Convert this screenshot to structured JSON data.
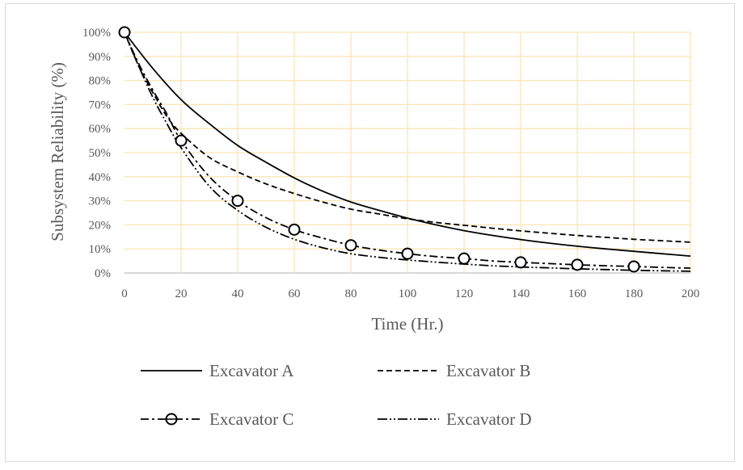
{
  "chart_data": {
    "type": "line",
    "title": "",
    "xlabel": "Time (Hr.)",
    "ylabel": "Subsystem Reliability (%)",
    "xlim": [
      0,
      200
    ],
    "ylim": [
      0,
      100
    ],
    "x_ticks": [
      0,
      20,
      40,
      60,
      80,
      100,
      120,
      140,
      160,
      180,
      200
    ],
    "y_ticks": [
      "0%",
      "10%",
      "20%",
      "30%",
      "40%",
      "50%",
      "60%",
      "70%",
      "80%",
      "90%",
      "100%"
    ],
    "grid": true,
    "legend_position": "bottom",
    "colors": {
      "line": "#000000",
      "grid": "#fbe5b6",
      "text": "#595959",
      "frame": "#d9d9d9"
    },
    "series": [
      {
        "name": "Excavator A",
        "style": "solid",
        "x": [
          0,
          10,
          20,
          30,
          40,
          50,
          60,
          70,
          80,
          90,
          100,
          110,
          120,
          130,
          140,
          150,
          160,
          170,
          180,
          190,
          200
        ],
        "values": [
          100,
          85,
          72,
          62,
          53,
          46,
          39.5,
          34,
          29.5,
          26,
          22.8,
          20,
          17.6,
          15.6,
          13.9,
          12.4,
          11.1,
          10,
          9,
          8,
          7
        ]
      },
      {
        "name": "Excavator B",
        "style": "dashed",
        "x": [
          0,
          5,
          10,
          15,
          20,
          30,
          40,
          50,
          60,
          70,
          80,
          90,
          100,
          110,
          120,
          130,
          140,
          150,
          160,
          170,
          180,
          190,
          200
        ],
        "values": [
          100,
          86,
          75,
          65,
          58,
          48,
          42,
          37,
          33,
          29.5,
          26.5,
          24.5,
          22.5,
          21,
          19.8,
          18.6,
          17.5,
          16.5,
          15.6,
          14.8,
          14,
          13.4,
          12.8
        ]
      },
      {
        "name": "Excavator C",
        "style": "dash-dot-marker",
        "x": [
          0,
          5,
          10,
          15,
          20,
          30,
          40,
          50,
          60,
          70,
          80,
          90,
          100,
          110,
          120,
          130,
          140,
          150,
          160,
          170,
          180,
          190,
          200
        ],
        "values": [
          100,
          87,
          76,
          66,
          55,
          40,
          30,
          23,
          18,
          14.5,
          11.5,
          9.5,
          8,
          6.8,
          6,
          5,
          4.4,
          3.9,
          3.4,
          3,
          2.7,
          2.3,
          2
        ],
        "marker_x": [
          0,
          20,
          40,
          60,
          80,
          100,
          120,
          140,
          160,
          180
        ]
      },
      {
        "name": "Excavator D",
        "style": "dash-dot-dot",
        "x": [
          0,
          5,
          10,
          15,
          20,
          30,
          40,
          50,
          60,
          70,
          80,
          90,
          100,
          110,
          120,
          130,
          140,
          150,
          160,
          170,
          180,
          190,
          200
        ],
        "values": [
          100,
          86,
          73,
          62,
          52,
          36,
          26,
          19,
          14,
          10.5,
          8,
          6.5,
          5.4,
          4.5,
          3.7,
          3,
          2.5,
          2.1,
          1.7,
          1.4,
          1.1,
          0.9,
          0.7
        ]
      }
    ]
  }
}
